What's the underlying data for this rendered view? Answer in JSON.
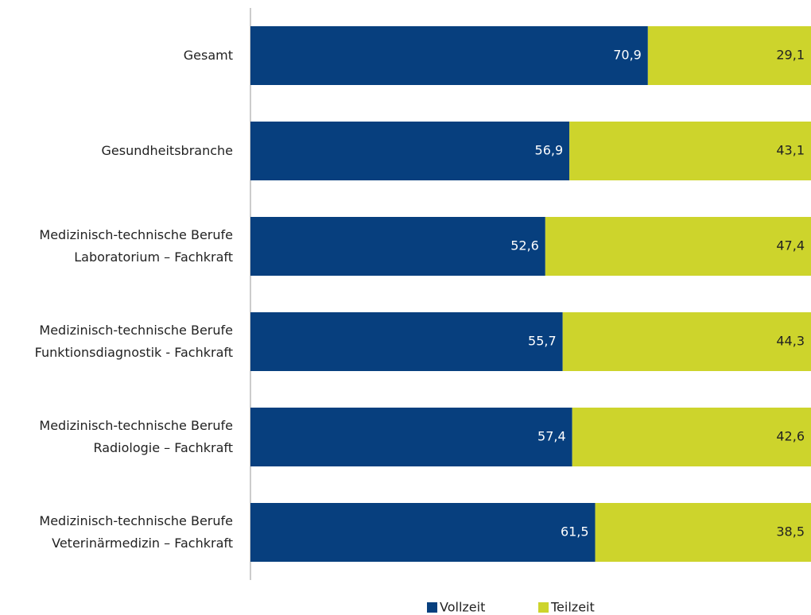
{
  "chart_data": {
    "type": "stacked-bar-horizontal",
    "categories": [
      "Gesamt",
      "Gesundheitsbranche",
      "Medizinisch-technische Berufe\nLaboratorium – Fachkraft",
      "Medizinisch-technische Berufe\nFunktionsdiagnostik - Fachkraft",
      "Medizinisch-technische Berufe\nRadiologie – Fachkraft",
      "Medizinisch-technische Berufe\nVeterinärmedizin – Fachkraft"
    ],
    "series": [
      {
        "name": "Vollzeit",
        "color": "#073f7e",
        "values": [
          70.9,
          56.9,
          52.6,
          55.7,
          57.4,
          61.5
        ],
        "value_labels": [
          "70,9",
          "56,9",
          "52,6",
          "55,7",
          "57,4",
          "61,5"
        ]
      },
      {
        "name": "Teilzeit",
        "color": "#cdd42c",
        "values": [
          29.1,
          43.1,
          47.4,
          44.3,
          42.6,
          38.5
        ],
        "value_labels": [
          "29,1",
          "43,1",
          "47,4",
          "44,3",
          "42,6",
          "38,5"
        ]
      }
    ],
    "xlim": [
      0,
      100
    ],
    "legend": "bottom"
  }
}
